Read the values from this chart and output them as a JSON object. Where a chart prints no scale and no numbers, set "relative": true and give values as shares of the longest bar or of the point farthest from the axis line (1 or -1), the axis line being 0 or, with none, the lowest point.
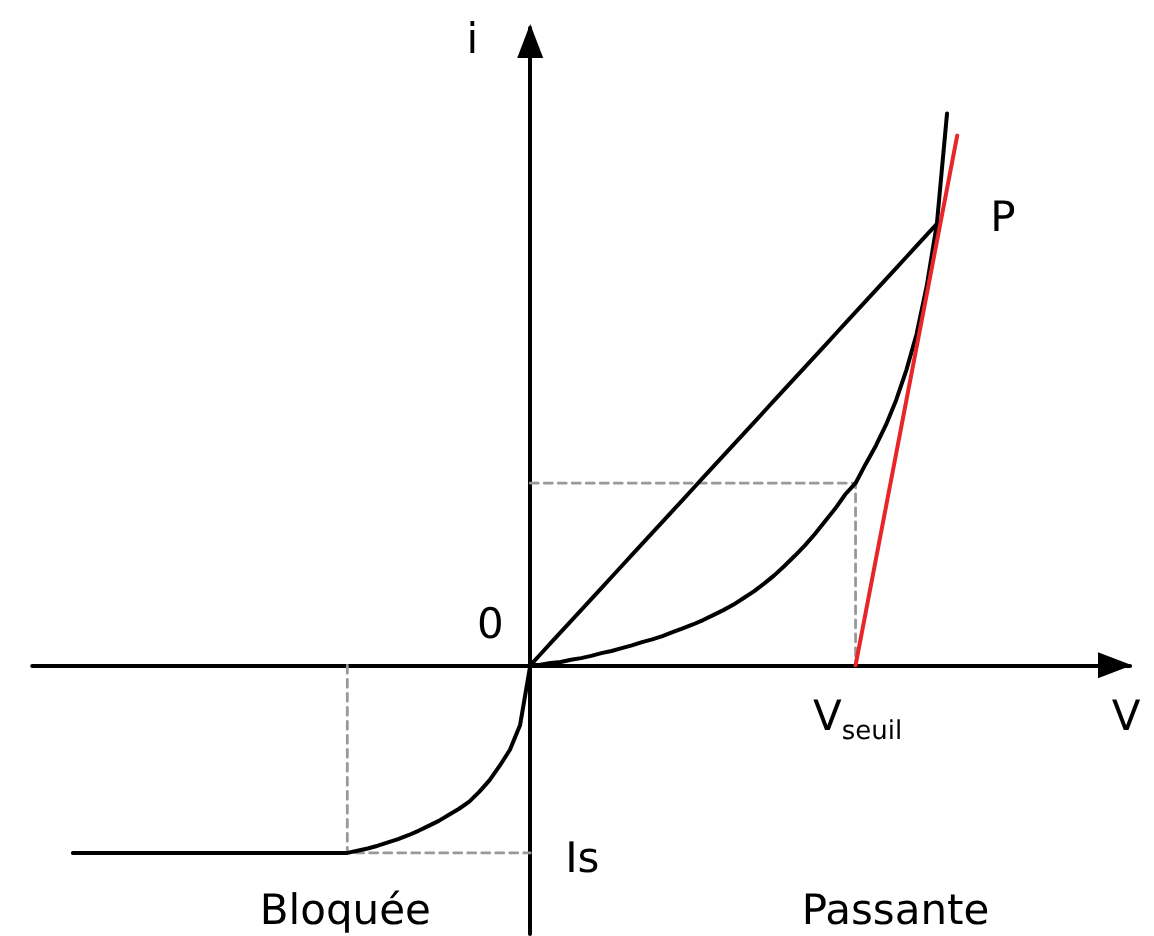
{
  "chart_data": {
    "type": "line",
    "relative": true,
    "xlabel": "V",
    "ylabel": "i",
    "line_style": "solid",
    "categories": [
      null,
      null,
      null,
      null,
      null,
      null,
      null,
      null,
      null,
      null,
      null,
      null,
      null,
      null,
      null,
      null,
      null,
      null,
      null,
      null,
      null,
      null,
      null,
      null,
      null,
      null,
      null,
      null,
      null,
      null,
      null,
      null,
      null,
      null,
      null,
      null,
      null,
      null,
      null,
      null,
      null,
      null,
      null,
      null,
      null,
      null,
      null,
      null,
      null,
      null,
      null,
      null,
      null,
      null,
      null,
      null,
      null,
      null,
      null,
      null,
      null,
      null,
      null,
      null,
      null,
      null,
      null,
      null,
      null,
      null,
      null,
      null,
      null,
      null,
      null,
      null,
      null,
      null,
      null,
      null,
      null,
      null,
      null,
      null,
      null,
      null,
      null,
      null,
      null,
      null,
      null,
      null,
      null,
      null,
      null,
      null,
      null,
      null,
      null,
      null,
      null,
      null,
      null,
      null,
      null,
      null,
      null,
      null,
      null
    ],
    "series": [
      {
        "color": "#000000",
        "values": [
          null,
          null,
          null,
          null,
          -0.34,
          -0.34,
          -0.34,
          -0.34,
          -0.34,
          -0.34,
          -0.34,
          -0.34,
          -0.34,
          -0.34,
          -0.34,
          -0.34,
          -0.34,
          -0.34,
          -0.34,
          -0.34,
          -0.34,
          -0.34,
          -0.34,
          -0.34,
          -0.34,
          -0.34,
          -0.34,
          -0.34,
          -0.34,
          -0.34,
          -0.34,
          -0.34,
          -0.336,
          -0.332,
          -0.327,
          -0.321,
          -0.315,
          -0.308,
          -0.3,
          -0.291,
          -0.282,
          -0.271,
          -0.26,
          -0.247,
          -0.229,
          -0.208,
          -0.182,
          -0.153,
          -0.108,
          0,
          0.001,
          0.004,
          0.006,
          0.01,
          0.013,
          0.017,
          0.022,
          0.026,
          0.031,
          0.036,
          0.042,
          0.047,
          0.053,
          0.06,
          0.067,
          0.074,
          0.082,
          0.091,
          0.1,
          0.11,
          0.122,
          0.134,
          0.148,
          0.163,
          0.18,
          0.198,
          0.217,
          0.238,
          0.261,
          0.284,
          0.31,
          0.33,
          0.365,
          0.398,
          0.436,
          0.481,
          0.535,
          0.6,
          0.687,
          0.8,
          1.0,
          null,
          null,
          null,
          null,
          null,
          null,
          null,
          null,
          null,
          null,
          null,
          null,
          null,
          null,
          null,
          null,
          null,
          null
        ]
      },
      {
        "color": "#000000",
        "values": [
          null,
          null,
          null,
          null,
          null,
          null,
          null,
          null,
          null,
          null,
          null,
          null,
          null,
          null,
          null,
          null,
          null,
          null,
          null,
          null,
          null,
          null,
          null,
          null,
          null,
          null,
          null,
          null,
          null,
          null,
          null,
          null,
          null,
          null,
          null,
          null,
          null,
          null,
          null,
          null,
          null,
          null,
          null,
          null,
          null,
          null,
          null,
          null,
          null,
          0,
          0.02,
          0.04,
          0.06,
          0.08,
          0.1,
          0.12,
          0.14,
          0.16,
          0.18,
          0.2,
          0.22,
          0.24,
          0.26,
          0.28,
          0.3,
          0.32,
          0.34,
          0.36,
          0.38,
          0.4,
          0.42,
          0.44,
          0.46,
          0.48,
          0.5,
          0.52,
          0.54,
          0.56,
          0.58,
          0.6,
          0.62,
          0.64,
          0.66,
          0.68,
          0.7,
          0.72,
          0.74,
          0.76,
          0.78,
          0.8,
          null,
          null,
          null,
          null,
          null,
          null,
          null,
          null,
          null,
          null,
          null,
          null,
          null,
          null,
          null,
          null,
          null,
          null,
          null
        ]
      },
      {
        "color": "#e8262a",
        "values": [
          null,
          null,
          null,
          null,
          null,
          null,
          null,
          null,
          null,
          null,
          null,
          null,
          null,
          null,
          null,
          null,
          null,
          null,
          null,
          null,
          null,
          null,
          null,
          null,
          null,
          null,
          null,
          null,
          null,
          null,
          null,
          null,
          null,
          null,
          null,
          null,
          null,
          null,
          null,
          null,
          null,
          null,
          null,
          null,
          null,
          null,
          null,
          null,
          null,
          null,
          null,
          null,
          null,
          null,
          null,
          null,
          null,
          null,
          null,
          null,
          null,
          null,
          null,
          null,
          null,
          null,
          null,
          null,
          null,
          null,
          null,
          null,
          null,
          null,
          null,
          null,
          null,
          null,
          null,
          null,
          null,
          0,
          0.096,
          0.192,
          0.288,
          0.384,
          0.48,
          0.576,
          0.672,
          0.768,
          0.864,
          0.96,
          null,
          null,
          null,
          null,
          null,
          null,
          null,
          null,
          null,
          null,
          null,
          null,
          null,
          null,
          null,
          null,
          null
        ]
      },
      {
        "type": "step",
        "color": "#999999",
        "line_style": "dashed",
        "values": [
          null,
          null,
          null,
          null,
          null,
          null,
          null,
          null,
          null,
          null,
          null,
          null,
          null,
          null,
          null,
          null,
          null,
          null,
          null,
          null,
          null,
          null,
          null,
          null,
          null,
          null,
          null,
          null,
          null,
          null,
          null,
          null,
          null,
          null,
          null,
          null,
          null,
          null,
          null,
          null,
          null,
          null,
          null,
          null,
          null,
          null,
          null,
          null,
          null,
          0.33,
          0.33,
          0.33,
          0.33,
          0.33,
          0.33,
          0.33,
          0.33,
          0.33,
          0.33,
          0.33,
          0.33,
          0.33,
          0.33,
          0.33,
          0.33,
          0.33,
          0.33,
          0.33,
          0.33,
          0.33,
          0.33,
          0.33,
          0.33,
          0.33,
          0.33,
          0.33,
          0.33,
          0.33,
          0.33,
          0.33,
          0.33,
          0,
          null,
          null,
          null,
          null,
          null,
          null,
          null,
          null,
          null,
          null,
          null,
          null,
          null,
          null,
          null,
          null,
          null,
          null,
          null,
          null,
          null,
          null,
          null,
          null,
          null,
          null,
          null
        ]
      },
      {
        "type": "step",
        "color": "#999999",
        "line_style": "dashed",
        "values": [
          null,
          null,
          null,
          null,
          null,
          null,
          null,
          null,
          null,
          null,
          null,
          null,
          null,
          null,
          null,
          null,
          null,
          null,
          null,
          null,
          null,
          null,
          null,
          null,
          null,
          null,
          null,
          null,
          null,
          null,
          null,
          0,
          -0.34,
          -0.34,
          -0.34,
          -0.34,
          -0.34,
          -0.34,
          -0.34,
          -0.34,
          -0.34,
          -0.34,
          -0.34,
          -0.34,
          -0.34,
          -0.34,
          -0.34,
          -0.34,
          -0.34,
          -0.34,
          null,
          null,
          null,
          null,
          null,
          null,
          null,
          null,
          null,
          null,
          null,
          null,
          null,
          null,
          null,
          null,
          null,
          null,
          null,
          null,
          null,
          null,
          null,
          null,
          null,
          null,
          null,
          null,
          null,
          null,
          null,
          null,
          null,
          null,
          null,
          null,
          null,
          null,
          null,
          null,
          null,
          null,
          null,
          null,
          null,
          null,
          null,
          null,
          null,
          null,
          null,
          null,
          null,
          null,
          null,
          null,
          null,
          null,
          null
        ]
      }
    ],
    "annotations": [
      "0",
      "P",
      "V$_{seuil}$",
      "Is",
      "Bloquée",
      "Passante"
    ]
  }
}
